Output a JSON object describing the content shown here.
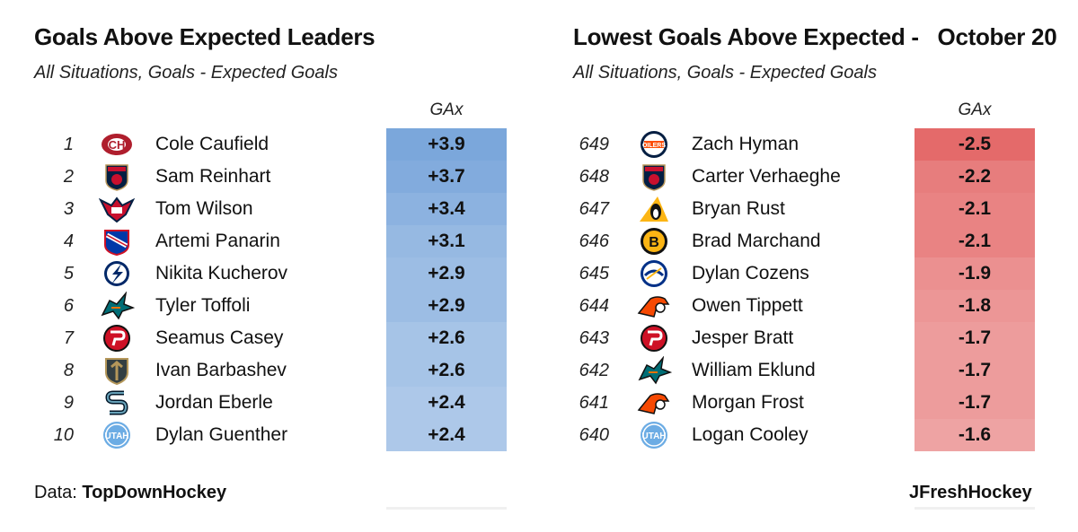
{
  "chart_data": [
    {
      "type": "table",
      "title": "Goals Above Expected Leaders",
      "subtitle": "All Situations, Goals - Expected Goals",
      "value_header": "GAx",
      "color": "#7ba7db",
      "rows": [
        {
          "rank": "1",
          "team": "Montreal Canadiens",
          "player": "Cole Caufield",
          "value": "+3.9"
        },
        {
          "rank": "2",
          "team": "Florida Panthers",
          "player": "Sam Reinhart",
          "value": "+3.7"
        },
        {
          "rank": "3",
          "team": "Washington Capitals",
          "player": "Tom Wilson",
          "value": "+3.4"
        },
        {
          "rank": "4",
          "team": "New York Rangers",
          "player": "Artemi Panarin",
          "value": "+3.1"
        },
        {
          "rank": "5",
          "team": "Tampa Bay Lightning",
          "player": "Nikita Kucherov",
          "value": "+2.9"
        },
        {
          "rank": "6",
          "team": "San Jose Sharks",
          "player": "Tyler Toffoli",
          "value": "+2.9"
        },
        {
          "rank": "7",
          "team": "New Jersey Devils",
          "player": "Seamus Casey",
          "value": "+2.6"
        },
        {
          "rank": "8",
          "team": "Vegas Golden Knights",
          "player": "Ivan Barbashev",
          "value": "+2.6"
        },
        {
          "rank": "9",
          "team": "Seattle Kraken",
          "player": "Jordan Eberle",
          "value": "+2.4"
        },
        {
          "rank": "10",
          "team": "Utah Hockey Club",
          "player": "Dylan Guenther",
          "value": "+2.4"
        }
      ]
    },
    {
      "type": "table",
      "title": "Lowest Goals Above Expected -   October 20",
      "subtitle": "All Situations, Goals - Expected Goals",
      "value_header": "GAx",
      "color": "#e46a6a",
      "rows": [
        {
          "rank": "649",
          "team": "Edmonton Oilers",
          "player": "Zach Hyman",
          "value": "-2.5"
        },
        {
          "rank": "648",
          "team": "Florida Panthers",
          "player": "Carter Verhaeghe",
          "value": "-2.2"
        },
        {
          "rank": "647",
          "team": "Pittsburgh Penguins",
          "player": "Bryan Rust",
          "value": "-2.1"
        },
        {
          "rank": "646",
          "team": "Boston Bruins",
          "player": "Brad Marchand",
          "value": "-2.1"
        },
        {
          "rank": "645",
          "team": "Buffalo Sabres",
          "player": "Dylan Cozens",
          "value": "-1.9"
        },
        {
          "rank": "644",
          "team": "Philadelphia Flyers",
          "player": "Owen Tippett",
          "value": "-1.8"
        },
        {
          "rank": "643",
          "team": "New Jersey Devils",
          "player": "Jesper Bratt",
          "value": "-1.7"
        },
        {
          "rank": "642",
          "team": "San Jose Sharks",
          "player": "William Eklund",
          "value": "-1.7"
        },
        {
          "rank": "641",
          "team": "Philadelphia Flyers",
          "player": "Morgan Frost",
          "value": "-1.7"
        },
        {
          "rank": "640",
          "team": "Utah Hockey Club",
          "player": "Logan Cooley",
          "value": "-1.6"
        }
      ]
    }
  ],
  "footer": {
    "data_label": "Data: ",
    "data_source": "TopDownHockey",
    "credit": "JFreshHockey"
  }
}
